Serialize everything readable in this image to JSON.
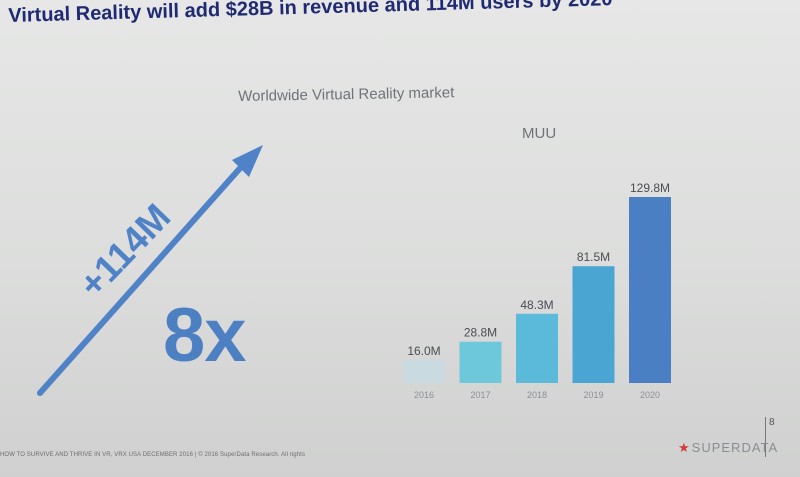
{
  "slide": {
    "title": "Virtual Reality will add $28B in revenue and 114M users by 2020",
    "subtitle": "Worldwide Virtual Reality market",
    "unit_label": "MUU",
    "arrow_label": "+114M",
    "multiplier": "8x",
    "footer": "HOW TO SURVIVE AND THRIVE IN VR, VRX USA DECEMBER 2016  |  © 2016 SuperData Research. All rights",
    "page_number": "8",
    "logo_text": "SUPERDATA",
    "logo_icon": "star-icon"
  },
  "colors": {
    "title": "#1f2a73",
    "arrow": "#4f82c6",
    "bars": [
      "#c9dbe0",
      "#6ec8dc",
      "#5bbad9",
      "#4aa5d3",
      "#4b7fc4"
    ],
    "logo_star": "#d63a3a"
  },
  "chart_data": {
    "type": "bar",
    "title": "Worldwide Virtual Reality market",
    "ylabel": "MUU",
    "categories": [
      "2016",
      "2017",
      "2018",
      "2019",
      "2020"
    ],
    "values": [
      16.0,
      28.8,
      48.3,
      81.5,
      129.8
    ],
    "data_labels": [
      "16.0M",
      "28.8M",
      "48.3M",
      "81.5M",
      "129.8M"
    ],
    "ylim": [
      0,
      129.8
    ],
    "grid": false,
    "legend": "none"
  }
}
